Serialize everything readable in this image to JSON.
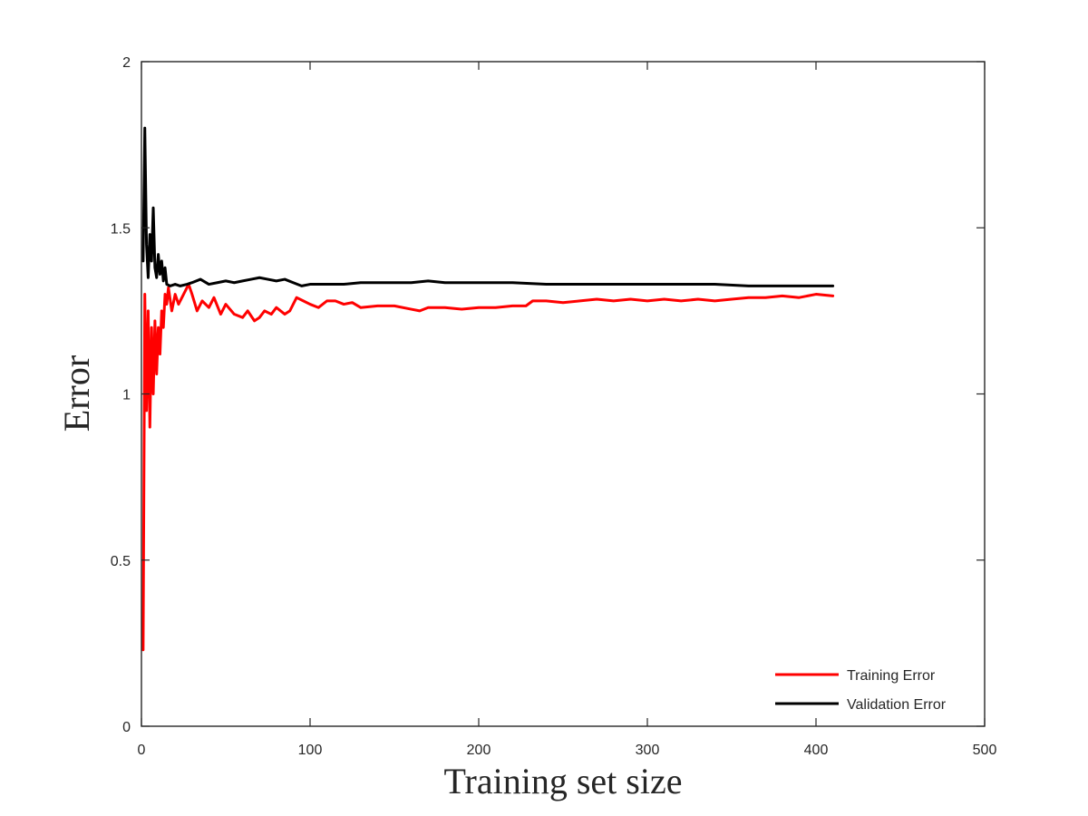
{
  "chart_data": {
    "type": "line",
    "title": "",
    "xlabel": "Training set size",
    "ylabel": "Error",
    "xlim": [
      0,
      500
    ],
    "ylim": [
      0,
      2
    ],
    "xticks": [
      0,
      100,
      200,
      300,
      400,
      500
    ],
    "yticks": [
      0,
      0.5,
      1,
      1.5,
      2
    ],
    "xtick_labels": [
      "0",
      "100",
      "200",
      "300",
      "400",
      "500"
    ],
    "ytick_labels": [
      "0",
      "0.5",
      "1",
      "1.5",
      "2"
    ],
    "grid": false,
    "legend_position": "bottom-right",
    "series": [
      {
        "name": "Training Error",
        "color": "#ff0000",
        "points": [
          [
            1,
            0.23
          ],
          [
            2,
            1.3
          ],
          [
            3,
            0.95
          ],
          [
            4,
            1.25
          ],
          [
            5,
            0.9
          ],
          [
            6,
            1.2
          ],
          [
            7,
            1.0
          ],
          [
            8,
            1.22
          ],
          [
            9,
            1.06
          ],
          [
            10,
            1.2
          ],
          [
            11,
            1.12
          ],
          [
            12,
            1.25
          ],
          [
            13,
            1.2
          ],
          [
            14,
            1.3
          ],
          [
            15,
            1.27
          ],
          [
            16,
            1.32
          ],
          [
            18,
            1.25
          ],
          [
            20,
            1.3
          ],
          [
            22,
            1.27
          ],
          [
            25,
            1.3
          ],
          [
            28,
            1.33
          ],
          [
            30,
            1.3
          ],
          [
            33,
            1.25
          ],
          [
            36,
            1.28
          ],
          [
            40,
            1.26
          ],
          [
            43,
            1.29
          ],
          [
            47,
            1.24
          ],
          [
            50,
            1.27
          ],
          [
            55,
            1.24
          ],
          [
            60,
            1.23
          ],
          [
            63,
            1.25
          ],
          [
            67,
            1.22
          ],
          [
            70,
            1.23
          ],
          [
            73,
            1.25
          ],
          [
            77,
            1.24
          ],
          [
            80,
            1.26
          ],
          [
            85,
            1.24
          ],
          [
            88,
            1.25
          ],
          [
            92,
            1.29
          ],
          [
            96,
            1.28
          ],
          [
            100,
            1.27
          ],
          [
            105,
            1.26
          ],
          [
            110,
            1.28
          ],
          [
            115,
            1.28
          ],
          [
            120,
            1.27
          ],
          [
            125,
            1.275
          ],
          [
            130,
            1.26
          ],
          [
            140,
            1.265
          ],
          [
            150,
            1.265
          ],
          [
            160,
            1.255
          ],
          [
            165,
            1.25
          ],
          [
            170,
            1.26
          ],
          [
            180,
            1.26
          ],
          [
            190,
            1.255
          ],
          [
            200,
            1.26
          ],
          [
            210,
            1.26
          ],
          [
            220,
            1.265
          ],
          [
            228,
            1.265
          ],
          [
            232,
            1.28
          ],
          [
            240,
            1.28
          ],
          [
            250,
            1.275
          ],
          [
            260,
            1.28
          ],
          [
            270,
            1.285
          ],
          [
            280,
            1.28
          ],
          [
            290,
            1.285
          ],
          [
            300,
            1.28
          ],
          [
            310,
            1.285
          ],
          [
            320,
            1.28
          ],
          [
            330,
            1.285
          ],
          [
            340,
            1.28
          ],
          [
            350,
            1.285
          ],
          [
            360,
            1.29
          ],
          [
            370,
            1.29
          ],
          [
            380,
            1.295
          ],
          [
            390,
            1.29
          ],
          [
            400,
            1.3
          ],
          [
            410,
            1.295
          ]
        ]
      },
      {
        "name": "Validation Error",
        "color": "#000000",
        "points": [
          [
            1,
            1.4
          ],
          [
            2,
            1.8
          ],
          [
            3,
            1.45
          ],
          [
            4,
            1.35
          ],
          [
            5,
            1.48
          ],
          [
            6,
            1.4
          ],
          [
            7,
            1.56
          ],
          [
            8,
            1.38
          ],
          [
            9,
            1.35
          ],
          [
            10,
            1.42
          ],
          [
            11,
            1.36
          ],
          [
            12,
            1.4
          ],
          [
            13,
            1.34
          ],
          [
            14,
            1.38
          ],
          [
            15,
            1.33
          ],
          [
            17,
            1.325
          ],
          [
            20,
            1.33
          ],
          [
            23,
            1.325
          ],
          [
            27,
            1.33
          ],
          [
            30,
            1.335
          ],
          [
            35,
            1.345
          ],
          [
            40,
            1.33
          ],
          [
            45,
            1.335
          ],
          [
            50,
            1.34
          ],
          [
            55,
            1.335
          ],
          [
            60,
            1.34
          ],
          [
            65,
            1.345
          ],
          [
            70,
            1.35
          ],
          [
            75,
            1.345
          ],
          [
            80,
            1.34
          ],
          [
            85,
            1.345
          ],
          [
            90,
            1.335
          ],
          [
            95,
            1.325
          ],
          [
            100,
            1.33
          ],
          [
            110,
            1.33
          ],
          [
            120,
            1.33
          ],
          [
            130,
            1.335
          ],
          [
            140,
            1.335
          ],
          [
            150,
            1.335
          ],
          [
            160,
            1.335
          ],
          [
            170,
            1.34
          ],
          [
            180,
            1.335
          ],
          [
            190,
            1.335
          ],
          [
            200,
            1.335
          ],
          [
            220,
            1.335
          ],
          [
            240,
            1.33
          ],
          [
            260,
            1.33
          ],
          [
            280,
            1.33
          ],
          [
            300,
            1.33
          ],
          [
            320,
            1.33
          ],
          [
            340,
            1.33
          ],
          [
            360,
            1.325
          ],
          [
            380,
            1.325
          ],
          [
            400,
            1.325
          ],
          [
            410,
            1.325
          ]
        ]
      }
    ]
  }
}
